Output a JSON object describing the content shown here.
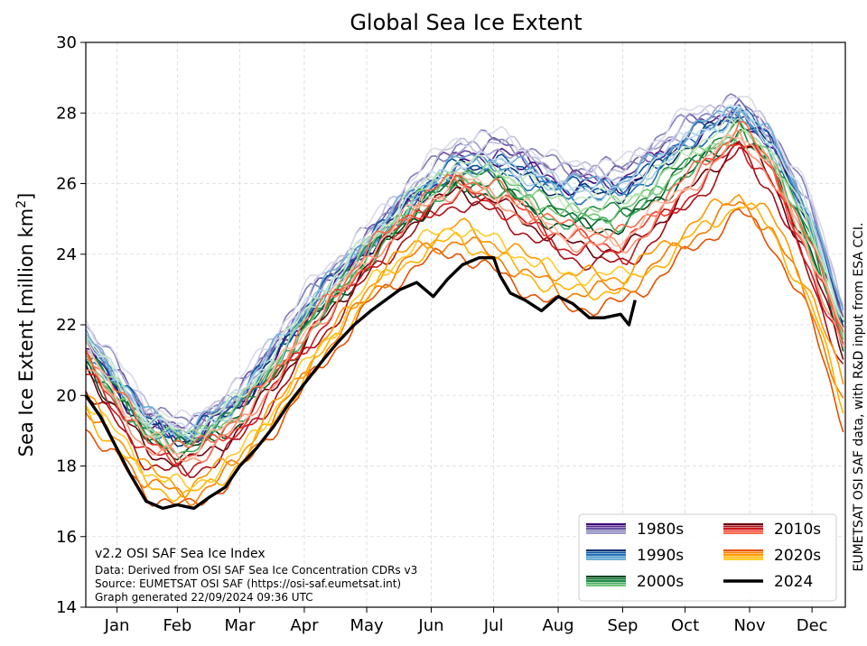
{
  "chart_data": {
    "type": "line",
    "title": "Global Sea Ice Extent",
    "ylabel_main": "Sea Ice Extent [million km",
    "ylabel_sup": "2",
    "ylabel_end": "]",
    "ylim": [
      14,
      30
    ],
    "yticks": [
      "14",
      "16",
      "18",
      "20",
      "22",
      "24",
      "26",
      "28",
      "30"
    ],
    "ytick_values": [
      14,
      16,
      18,
      20,
      22,
      24,
      26,
      28,
      30
    ],
    "x_unit": "day of year",
    "xlim": [
      1,
      366
    ],
    "months": [
      "Jan",
      "Feb",
      "Mar",
      "Apr",
      "May",
      "Jun",
      "Jul",
      "Aug",
      "Sep",
      "Oct",
      "Nov",
      "Dec"
    ],
    "month_days": [
      16,
      45,
      75,
      106,
      136,
      167,
      197,
      228,
      259,
      289,
      320,
      350
    ],
    "grid": true,
    "legend_placement": "bottom-right",
    "decades": [
      {
        "name": "1980s",
        "colors": [
          "#3f007d",
          "#54278f",
          "#6a51a3",
          "#807dba",
          "#9e9ac8",
          "#bcbddc",
          "#dadaeb"
        ]
      },
      {
        "name": "1990s",
        "colors": [
          "#08306b",
          "#08519c",
          "#2171b5",
          "#4292c6",
          "#6baed6",
          "#9ecae1",
          "#c6dbef"
        ]
      },
      {
        "name": "2000s",
        "colors": [
          "#00441b",
          "#006d2c",
          "#238b45",
          "#41ab5d",
          "#74c476",
          "#a1d99b",
          "#c7e9c0"
        ]
      },
      {
        "name": "2010s",
        "colors": [
          "#67000d",
          "#a50f15",
          "#cb181d",
          "#ef3b2c",
          "#fb6a4a",
          "#fc9272",
          "#fcbba1"
        ]
      },
      {
        "name": "2020s",
        "colors": [
          "#e65100",
          "#f57c00",
          "#ff9800",
          "#ffb300",
          "#ffca28"
        ]
      }
    ],
    "series": [
      {
        "name": "2024",
        "color": "#000000",
        "x": [
          1,
          8,
          15,
          22,
          30,
          38,
          45,
          53,
          60,
          68,
          75,
          83,
          91,
          99,
          107,
          115,
          122,
          130,
          138,
          145,
          152,
          160,
          168,
          175,
          182,
          190,
          197,
          200,
          205,
          212,
          220,
          228,
          235,
          243,
          250,
          258,
          262,
          265
        ],
        "y": [
          20.0,
          19.4,
          18.6,
          17.8,
          17.0,
          16.8,
          16.9,
          16.8,
          17.1,
          17.4,
          18.0,
          18.5,
          19.1,
          19.8,
          20.4,
          21.0,
          21.5,
          22.0,
          22.4,
          22.7,
          23.0,
          23.2,
          22.8,
          23.3,
          23.7,
          23.9,
          23.9,
          23.4,
          22.9,
          22.7,
          22.4,
          22.8,
          22.6,
          22.2,
          22.2,
          22.3,
          22.0,
          22.7
        ]
      }
    ],
    "decade_envelopes": [
      {
        "name": "1980s",
        "x": [
          1,
          30,
          50,
          75,
          110,
          140,
          160,
          180,
          200,
          230,
          260,
          290,
          315,
          330,
          350,
          366
        ],
        "low": [
          21.0,
          19.0,
          18.6,
          19.6,
          22.2,
          24.2,
          25.4,
          26.3,
          26.6,
          25.8,
          25.8,
          27.0,
          27.8,
          27.0,
          24.5,
          21.5
        ],
        "high": [
          22.5,
          20.0,
          19.4,
          20.6,
          23.5,
          25.2,
          26.6,
          27.6,
          27.6,
          26.8,
          26.8,
          28.3,
          28.6,
          27.8,
          25.8,
          22.7
        ]
      },
      {
        "name": "1990s",
        "x": [
          1,
          30,
          50,
          75,
          110,
          140,
          160,
          180,
          200,
          230,
          260,
          290,
          315,
          330,
          350,
          366
        ],
        "low": [
          20.8,
          18.8,
          18.4,
          19.3,
          22.0,
          24.0,
          25.2,
          26.0,
          26.1,
          25.3,
          25.3,
          26.7,
          27.7,
          26.8,
          24.2,
          21.3
        ],
        "high": [
          22.2,
          19.8,
          19.2,
          20.4,
          23.2,
          25.0,
          26.2,
          27.0,
          27.0,
          26.4,
          26.4,
          27.8,
          28.4,
          27.6,
          25.5,
          22.4
        ]
      },
      {
        "name": "2000s",
        "x": [
          1,
          30,
          50,
          75,
          110,
          140,
          160,
          180,
          200,
          230,
          260,
          290,
          315,
          330,
          350,
          366
        ],
        "low": [
          20.5,
          18.5,
          18.2,
          19.0,
          21.6,
          23.7,
          24.9,
          25.6,
          25.5,
          24.5,
          24.5,
          26.0,
          27.2,
          26.4,
          23.8,
          21.0
        ],
        "high": [
          21.8,
          19.5,
          19.0,
          20.1,
          22.8,
          24.8,
          26.0,
          26.8,
          26.6,
          25.8,
          25.8,
          27.2,
          27.8,
          27.0,
          24.9,
          22.0
        ]
      },
      {
        "name": "2010s",
        "x": [
          1,
          30,
          50,
          75,
          110,
          140,
          160,
          180,
          200,
          230,
          260,
          290,
          315,
          330,
          350,
          366
        ],
        "low": [
          19.8,
          17.8,
          17.4,
          18.4,
          21.0,
          23.3,
          24.5,
          25.2,
          24.8,
          23.6,
          23.3,
          25.0,
          26.6,
          25.6,
          22.8,
          20.3
        ],
        "high": [
          22.0,
          19.3,
          18.8,
          19.8,
          22.7,
          24.7,
          25.8,
          26.6,
          26.2,
          25.2,
          25.0,
          26.6,
          28.0,
          27.0,
          24.6,
          22.2
        ]
      },
      {
        "name": "2020s",
        "x": [
          1,
          30,
          50,
          75,
          110,
          140,
          160,
          180,
          200,
          230,
          260,
          290,
          315,
          330,
          350,
          366
        ],
        "low": [
          18.6,
          16.8,
          16.4,
          17.4,
          20.1,
          22.4,
          23.3,
          23.6,
          22.8,
          21.8,
          22.1,
          23.5,
          24.8,
          24.0,
          21.5,
          18.4
        ],
        "high": [
          20.6,
          18.4,
          17.8,
          18.8,
          21.6,
          23.8,
          24.8,
          25.4,
          25.0,
          24.2,
          24.0,
          25.4,
          26.2,
          25.6,
          23.6,
          20.8
        ]
      }
    ]
  },
  "info": {
    "line1": "v2.2 OSI SAF Sea Ice Index",
    "line2": "Data: Derived from OSI SAF Sea Ice Concentration CDRs v3",
    "line3": "Source: EUMETSAT OSI SAF (https://osi-saf.eumetsat.int)",
    "line4": "Graph generated 22/09/2024 09:36 UTC"
  },
  "credit": "EUMETSAT OSI SAF data, with R&D input from ESA CCI."
}
